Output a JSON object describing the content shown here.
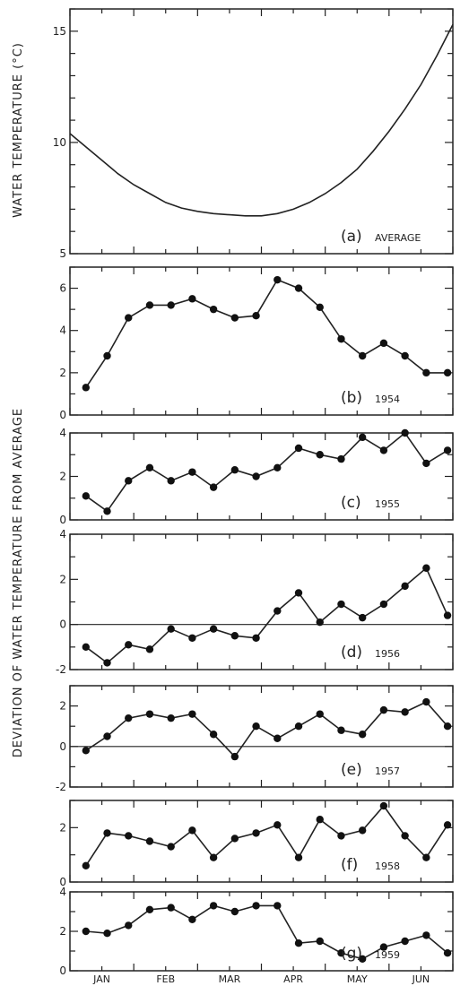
{
  "y_axis_title_top": "WATER TEMPERATURE (°C)",
  "y_axis_title_bottom": "DEVIATION OF WATER TEMPERATURE FROM AVERAGE",
  "months": [
    "JAN",
    "FEB",
    "MAR",
    "APR",
    "MAY",
    "JUN"
  ],
  "chart_data": [
    {
      "type": "line",
      "label": "(a)",
      "sublabel": "AVERAGE",
      "ylim": [
        5,
        16
      ],
      "yticks": [
        5,
        10,
        15
      ],
      "x": [
        0,
        0.5,
        1,
        1.5,
        2,
        2.5,
        3,
        3.5,
        4,
        4.5,
        5,
        5.5,
        6,
        6.5,
        7,
        7.5,
        8,
        8.5,
        9,
        9.5,
        10,
        10.5,
        11,
        11.5,
        12
      ],
      "values": [
        10.4,
        9.8,
        9.2,
        8.6,
        8.1,
        7.7,
        7.3,
        7.05,
        6.9,
        6.8,
        6.75,
        6.7,
        6.7,
        6.8,
        7.0,
        7.3,
        7.7,
        8.2,
        8.8,
        9.6,
        10.5,
        11.5,
        12.6,
        13.9,
        15.3
      ]
    },
    {
      "type": "line",
      "label": "(b)",
      "sublabel": "1954",
      "ylim": [
        0,
        7
      ],
      "yticks": [
        0,
        2,
        4,
        6
      ],
      "values": [
        1.3,
        2.8,
        4.6,
        5.2,
        5.2,
        5.5,
        5.0,
        4.6,
        4.7,
        6.4,
        6.0,
        5.1,
        3.6,
        2.8,
        3.4,
        2.8,
        2.0,
        2.0
      ]
    },
    {
      "type": "line",
      "label": "(c)",
      "sublabel": "1955",
      "ylim": [
        0,
        4
      ],
      "yticks": [
        0,
        2,
        4
      ],
      "values": [
        1.1,
        0.4,
        1.8,
        2.4,
        1.8,
        2.2,
        1.5,
        2.3,
        2.0,
        2.4,
        3.3,
        3.0,
        2.8,
        3.8,
        3.2,
        4.0,
        2.6,
        3.2
      ]
    },
    {
      "type": "line",
      "label": "(d)",
      "sublabel": "1956",
      "ylim": [
        -2,
        4
      ],
      "yticks": [
        -2,
        0,
        2,
        4
      ],
      "zero_line": true,
      "values": [
        -1.0,
        -1.7,
        -0.9,
        -1.1,
        -0.2,
        -0.6,
        -0.2,
        -0.5,
        -0.6,
        0.6,
        1.4,
        0.1,
        0.9,
        0.3,
        0.9,
        1.7,
        2.5,
        0.4
      ]
    },
    {
      "type": "line",
      "label": "(e)",
      "sublabel": "1957",
      "ylim": [
        -2,
        3
      ],
      "yticks": [
        -2,
        0,
        2
      ],
      "zero_line": true,
      "values": [
        -0.2,
        0.5,
        1.4,
        1.6,
        1.4,
        1.6,
        0.6,
        -0.5,
        1.0,
        0.4,
        1.0,
        1.6,
        0.8,
        0.6,
        1.8,
        1.7,
        2.2,
        1.0
      ]
    },
    {
      "type": "line",
      "label": "(f)",
      "sublabel": "1958",
      "ylim": [
        0,
        3
      ],
      "yticks": [
        0,
        2
      ],
      "values": [
        0.6,
        1.8,
        1.7,
        1.5,
        1.3,
        1.9,
        0.9,
        1.6,
        1.8,
        2.1,
        0.9,
        2.3,
        1.7,
        1.9,
        2.8,
        1.7,
        0.9,
        2.1
      ]
    },
    {
      "type": "line",
      "label": "(g)",
      "sublabel": "1959",
      "ylim": [
        0,
        4
      ],
      "yticks": [
        0,
        2,
        4
      ],
      "values": [
        2.0,
        1.9,
        2.3,
        3.1,
        3.2,
        2.6,
        3.3,
        3.0,
        3.3,
        3.3,
        1.4,
        1.5,
        0.9,
        0.6,
        1.2,
        1.5,
        1.8,
        0.9
      ]
    }
  ]
}
